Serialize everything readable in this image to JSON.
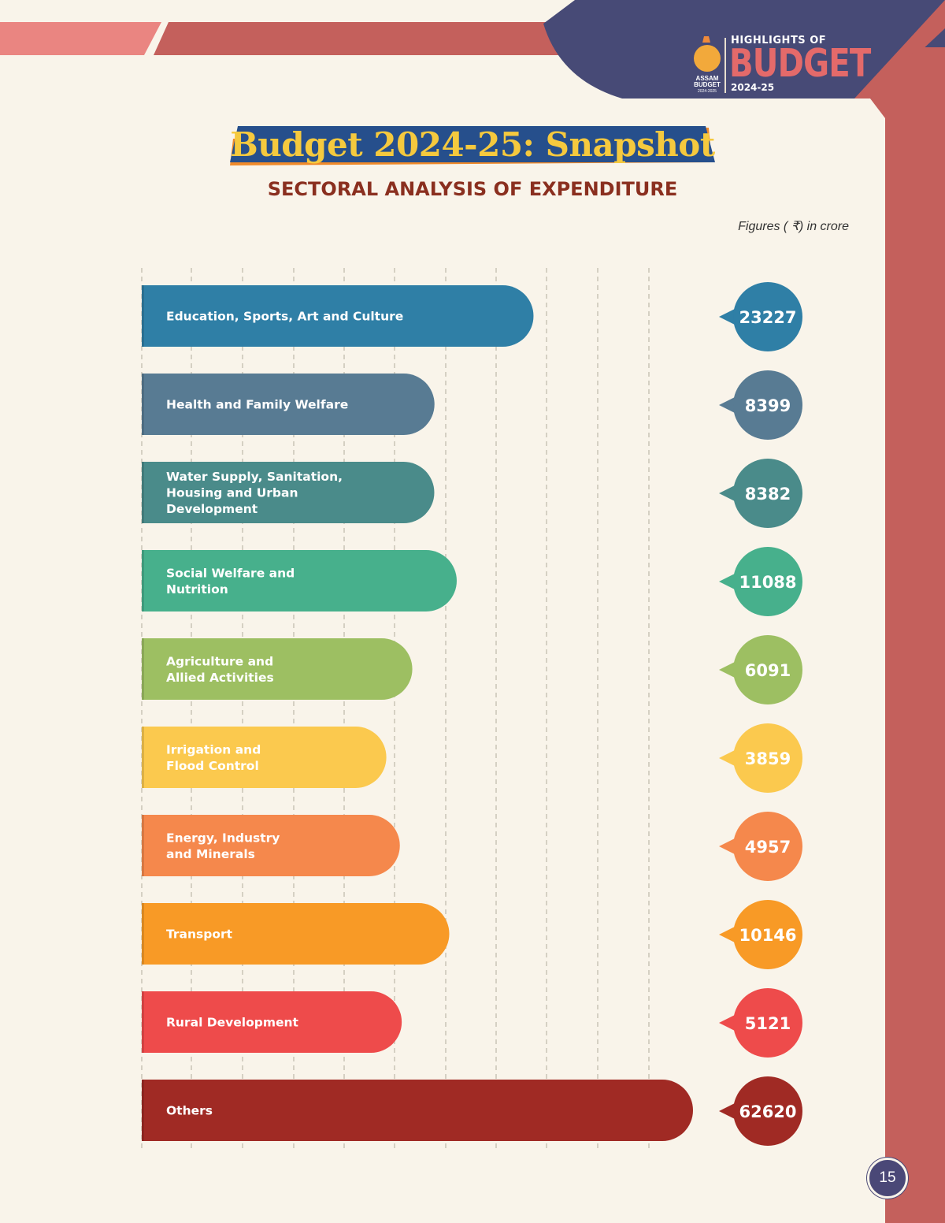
{
  "header": {
    "kicker": "HIGHLIGHTS OF",
    "title": "BUDGET",
    "year": "2024-25",
    "logo_text": "ASSAM BUDGET",
    "logo_year": "2024-2025"
  },
  "title": "Budget 2024-25: Snapshot",
  "subtitle": "SECTORAL ANALYSIS OF EXPENDITURE",
  "units_note": "Figures ( ₹) in crore",
  "page_number": "15",
  "colors": {
    "background": "#f9f4ea",
    "accent_red": "#c4605c",
    "navy": "#474a76",
    "title_gold": "#f5c93e",
    "title_blue": "#264f8c",
    "subtitle_brown": "#8a2f1f"
  },
  "chart_data": {
    "type": "bar",
    "orientation": "horizontal",
    "categories": [
      "Education, Sports, Art and Culture",
      "Health and Family Welfare",
      "Water Supply, Sanitation, Housing and Urban Development",
      "Social Welfare and Nutrition",
      "Agriculture and Allied Activities",
      "Irrigation and Flood Control",
      "Energy, Industry and Minerals",
      "Transport",
      "Rural Development",
      "Others"
    ],
    "category_lines": [
      [
        "Education, Sports, Art and Culture"
      ],
      [
        "Health and Family Welfare"
      ],
      [
        "Water Supply, Sanitation,",
        "Housing and Urban",
        "Development"
      ],
      [
        "Social Welfare and",
        "Nutrition"
      ],
      [
        "Agriculture and",
        "Allied Activities"
      ],
      [
        "Irrigation and",
        "Flood Control"
      ],
      [
        "Energy, Industry",
        "and Minerals"
      ],
      [
        "Transport"
      ],
      [
        "Rural Development"
      ],
      [
        "Others"
      ]
    ],
    "values": [
      23227,
      8399,
      8382,
      11088,
      6091,
      3859,
      4957,
      10146,
      5121,
      62620
    ],
    "value_labels": [
      "23227",
      "8399",
      "8382",
      "11088",
      "6091",
      "3859",
      "4957",
      "10146",
      "5121",
      "62620"
    ],
    "colors": [
      "#2f7fa6",
      "#587b93",
      "#4a8b8a",
      "#47b08c",
      "#9dbf62",
      "#fbc94e",
      "#f5884c",
      "#f89a26",
      "#ee4b4b",
      "#a02a24"
    ],
    "title": "",
    "xlabel": "",
    "ylabel": "",
    "grid": true,
    "legend": "none"
  }
}
